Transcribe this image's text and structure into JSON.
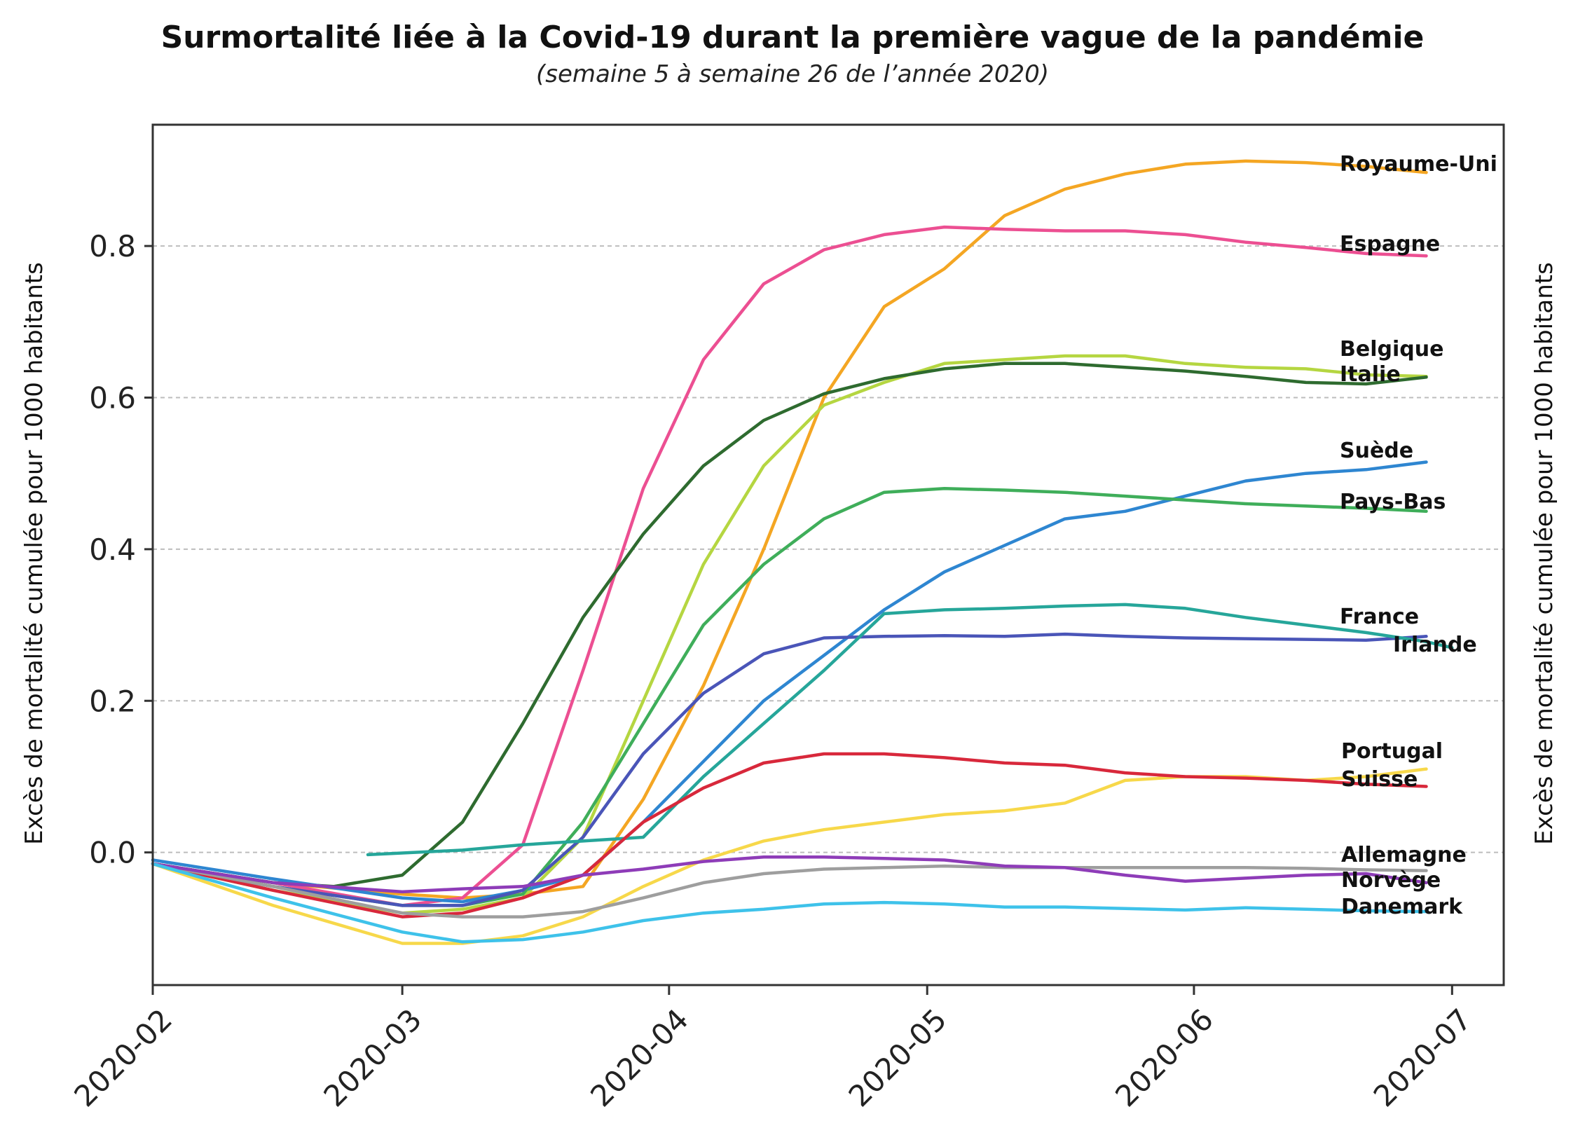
{
  "chart_data": {
    "type": "line",
    "title": "Surmortalité liée à la Covid-19 durant la première vague de la pandémie",
    "subtitle": "(semaine 5 à semaine 26 de l’année 2020)",
    "ylabel": "Excès de mortalité cumulée pour 1000 habitants",
    "ylabel_right": "Excès de mortalité cumulée pour 1000 habitants",
    "x_ticks": [
      "2020-02",
      "2020-03",
      "2020-04",
      "2020-05",
      "2020-06",
      "2020-07"
    ],
    "y_ticks": [
      "0.0",
      "0.2",
      "0.4",
      "0.6",
      "0.8"
    ],
    "ylim": [
      -0.175,
      0.96
    ],
    "xlim": [
      "2020-02-01",
      "2020-07-07"
    ],
    "grid": "horizontal dashed",
    "legend": "inline labels at right end of lines",
    "series": [
      {
        "name": "Royaume-Uni",
        "color": "#f4a623",
        "x": [
          "2020-02-01",
          "2020-02-15",
          "2020-03-01",
          "2020-03-08",
          "2020-03-15",
          "2020-03-22",
          "2020-03-29",
          "2020-04-05",
          "2020-04-12",
          "2020-04-19",
          "2020-04-26",
          "2020-05-03",
          "2020-05-10",
          "2020-05-17",
          "2020-05-24",
          "2020-05-31",
          "2020-06-07",
          "2020-06-14",
          "2020-06-21",
          "2020-06-28"
        ],
        "y": [
          -0.015,
          -0.04,
          -0.055,
          -0.06,
          -0.055,
          -0.045,
          0.07,
          0.22,
          0.4,
          0.6,
          0.72,
          0.77,
          0.84,
          0.875,
          0.895,
          0.908,
          0.912,
          0.91,
          0.905,
          0.897
        ]
      },
      {
        "name": "Espagne",
        "color": "#ec4f92",
        "x": [
          "2020-02-01",
          "2020-02-15",
          "2020-03-01",
          "2020-03-08",
          "2020-03-15",
          "2020-03-22",
          "2020-03-29",
          "2020-04-05",
          "2020-04-12",
          "2020-04-19",
          "2020-04-26",
          "2020-05-03",
          "2020-05-10",
          "2020-05-17",
          "2020-05-24",
          "2020-05-31",
          "2020-06-07",
          "2020-06-14",
          "2020-06-21",
          "2020-06-28"
        ],
        "y": [
          -0.015,
          -0.04,
          -0.07,
          -0.06,
          0.01,
          0.24,
          0.48,
          0.65,
          0.75,
          0.795,
          0.815,
          0.825,
          0.822,
          0.82,
          0.82,
          0.815,
          0.805,
          0.798,
          0.79,
          0.787
        ]
      },
      {
        "name": "Belgique",
        "color": "#b5d641",
        "x": [
          "2020-02-01",
          "2020-02-15",
          "2020-03-01",
          "2020-03-08",
          "2020-03-15",
          "2020-03-22",
          "2020-03-29",
          "2020-04-05",
          "2020-04-12",
          "2020-04-19",
          "2020-04-26",
          "2020-05-03",
          "2020-05-10",
          "2020-05-17",
          "2020-05-24",
          "2020-05-31",
          "2020-06-07",
          "2020-06-14",
          "2020-06-21",
          "2020-06-28"
        ],
        "y": [
          -0.015,
          -0.05,
          -0.08,
          -0.075,
          -0.06,
          0.02,
          0.2,
          0.38,
          0.51,
          0.59,
          0.62,
          0.645,
          0.65,
          0.655,
          0.655,
          0.645,
          0.64,
          0.638,
          0.63,
          0.628
        ]
      },
      {
        "name": "Italie",
        "color": "#2e6b2f",
        "x": [
          "2020-02-01",
          "2020-02-15",
          "2020-02-22",
          "2020-03-01",
          "2020-03-08",
          "2020-03-15",
          "2020-03-22",
          "2020-03-29",
          "2020-04-05",
          "2020-04-12",
          "2020-04-19",
          "2020-04-26",
          "2020-05-03",
          "2020-05-10",
          "2020-05-17",
          "2020-05-24",
          "2020-05-31",
          "2020-06-07",
          "2020-06-14",
          "2020-06-21",
          "2020-06-28"
        ],
        "y": [
          -0.015,
          -0.04,
          -0.045,
          -0.03,
          0.04,
          0.17,
          0.31,
          0.42,
          0.51,
          0.57,
          0.605,
          0.625,
          0.638,
          0.645,
          0.645,
          0.64,
          0.635,
          0.628,
          0.62,
          0.618,
          0.627
        ]
      },
      {
        "name": "Suède",
        "color": "#2e86d1",
        "x": [
          "2020-02-01",
          "2020-02-15",
          "2020-03-01",
          "2020-03-08",
          "2020-03-15",
          "2020-03-22",
          "2020-03-29",
          "2020-04-05",
          "2020-04-12",
          "2020-04-19",
          "2020-04-26",
          "2020-05-03",
          "2020-05-10",
          "2020-05-17",
          "2020-05-24",
          "2020-05-31",
          "2020-06-07",
          "2020-06-14",
          "2020-06-21",
          "2020-06-28"
        ],
        "y": [
          -0.01,
          -0.035,
          -0.06,
          -0.065,
          -0.05,
          -0.03,
          0.04,
          0.12,
          0.2,
          0.26,
          0.32,
          0.37,
          0.405,
          0.44,
          0.45,
          0.47,
          0.49,
          0.5,
          0.505,
          0.515
        ]
      },
      {
        "name": "Pays-Bas",
        "color": "#3fae5a",
        "x": [
          "2020-02-01",
          "2020-02-15",
          "2020-03-01",
          "2020-03-08",
          "2020-03-15",
          "2020-03-22",
          "2020-03-29",
          "2020-04-05",
          "2020-04-12",
          "2020-04-19",
          "2020-04-26",
          "2020-05-03",
          "2020-05-10",
          "2020-05-17",
          "2020-05-24",
          "2020-05-31",
          "2020-06-07",
          "2020-06-14",
          "2020-06-21",
          "2020-06-28"
        ],
        "y": [
          -0.015,
          -0.045,
          -0.07,
          -0.07,
          -0.055,
          0.04,
          0.17,
          0.3,
          0.38,
          0.44,
          0.475,
          0.48,
          0.478,
          0.475,
          0.47,
          0.465,
          0.46,
          0.457,
          0.454,
          0.45
        ]
      },
      {
        "name": "France",
        "color": "#4a55b8",
        "x": [
          "2020-02-01",
          "2020-02-15",
          "2020-03-01",
          "2020-03-08",
          "2020-03-15",
          "2020-03-22",
          "2020-03-29",
          "2020-04-05",
          "2020-04-12",
          "2020-04-19",
          "2020-04-26",
          "2020-05-03",
          "2020-05-10",
          "2020-05-17",
          "2020-05-24",
          "2020-05-31",
          "2020-06-07",
          "2020-06-14",
          "2020-06-21",
          "2020-06-28"
        ],
        "y": [
          -0.015,
          -0.045,
          -0.07,
          -0.07,
          -0.05,
          0.02,
          0.13,
          0.21,
          0.262,
          0.283,
          0.285,
          0.286,
          0.285,
          0.288,
          0.285,
          0.283,
          0.282,
          0.281,
          0.28,
          0.285
        ]
      },
      {
        "name": "Irlande",
        "color": "#26a69a",
        "x": [
          "2020-02-26",
          "2020-03-08",
          "2020-03-15",
          "2020-03-22",
          "2020-03-29",
          "2020-04-05",
          "2020-04-12",
          "2020-04-19",
          "2020-04-26",
          "2020-05-03",
          "2020-05-10",
          "2020-05-17",
          "2020-05-24",
          "2020-05-31",
          "2020-06-07",
          "2020-06-14",
          "2020-06-21",
          "2020-06-28",
          "2020-07-01"
        ],
        "y": [
          -0.003,
          0.003,
          0.01,
          0.015,
          0.02,
          0.1,
          0.17,
          0.24,
          0.315,
          0.32,
          0.322,
          0.325,
          0.327,
          0.322,
          0.31,
          0.3,
          0.29,
          0.278,
          0.27
        ]
      },
      {
        "name": "Portugal",
        "color": "#f7d84a",
        "x": [
          "2020-02-01",
          "2020-02-15",
          "2020-03-01",
          "2020-03-08",
          "2020-03-15",
          "2020-03-22",
          "2020-03-29",
          "2020-04-05",
          "2020-04-12",
          "2020-04-19",
          "2020-04-26",
          "2020-05-03",
          "2020-05-10",
          "2020-05-17",
          "2020-05-24",
          "2020-05-31",
          "2020-06-07",
          "2020-06-14",
          "2020-06-21",
          "2020-06-28"
        ],
        "y": [
          -0.015,
          -0.07,
          -0.12,
          -0.12,
          -0.11,
          -0.085,
          -0.045,
          -0.01,
          0.015,
          0.03,
          0.04,
          0.05,
          0.055,
          0.065,
          0.095,
          0.1,
          0.1,
          0.095,
          0.1,
          0.11
        ]
      },
      {
        "name": "Suisse",
        "color": "#d8283b",
        "x": [
          "2020-02-01",
          "2020-02-15",
          "2020-03-01",
          "2020-03-08",
          "2020-03-15",
          "2020-03-22",
          "2020-03-29",
          "2020-04-05",
          "2020-04-12",
          "2020-04-19",
          "2020-04-26",
          "2020-05-03",
          "2020-05-10",
          "2020-05-17",
          "2020-05-24",
          "2020-05-31",
          "2020-06-07",
          "2020-06-14",
          "2020-06-21",
          "2020-06-28"
        ],
        "y": [
          -0.015,
          -0.05,
          -0.085,
          -0.08,
          -0.06,
          -0.03,
          0.04,
          0.085,
          0.118,
          0.13,
          0.13,
          0.125,
          0.118,
          0.115,
          0.105,
          0.1,
          0.098,
          0.095,
          0.09,
          0.087
        ]
      },
      {
        "name": "Allemagne",
        "color": "#9e9e9e",
        "x": [
          "2020-02-01",
          "2020-02-15",
          "2020-03-01",
          "2020-03-08",
          "2020-03-15",
          "2020-03-22",
          "2020-03-29",
          "2020-04-05",
          "2020-04-12",
          "2020-04-19",
          "2020-04-26",
          "2020-05-03",
          "2020-05-10",
          "2020-05-17",
          "2020-05-24",
          "2020-05-31",
          "2020-06-07",
          "2020-06-14",
          "2020-06-21",
          "2020-06-28"
        ],
        "y": [
          -0.015,
          -0.045,
          -0.08,
          -0.085,
          -0.085,
          -0.078,
          -0.06,
          -0.04,
          -0.028,
          -0.022,
          -0.02,
          -0.018,
          -0.02,
          -0.02,
          -0.02,
          -0.02,
          -0.02,
          -0.021,
          -0.023,
          -0.024
        ]
      },
      {
        "name": "Norvège",
        "color": "#8e3cb8",
        "x": [
          "2020-02-01",
          "2020-02-15",
          "2020-03-01",
          "2020-03-08",
          "2020-03-15",
          "2020-03-22",
          "2020-03-29",
          "2020-04-05",
          "2020-04-12",
          "2020-04-19",
          "2020-04-26",
          "2020-05-03",
          "2020-05-10",
          "2020-05-17",
          "2020-05-24",
          "2020-05-31",
          "2020-06-07",
          "2020-06-14",
          "2020-06-21",
          "2020-06-28"
        ],
        "y": [
          -0.015,
          -0.04,
          -0.052,
          -0.048,
          -0.045,
          -0.03,
          -0.022,
          -0.012,
          -0.006,
          -0.006,
          -0.008,
          -0.01,
          -0.018,
          -0.02,
          -0.03,
          -0.038,
          -0.034,
          -0.03,
          -0.028,
          -0.04
        ]
      },
      {
        "name": "Danemark",
        "color": "#3ec2ea",
        "x": [
          "2020-02-01",
          "2020-02-15",
          "2020-03-01",
          "2020-03-08",
          "2020-03-15",
          "2020-03-22",
          "2020-03-29",
          "2020-04-05",
          "2020-04-12",
          "2020-04-19",
          "2020-04-26",
          "2020-05-03",
          "2020-05-10",
          "2020-05-17",
          "2020-05-24",
          "2020-05-31",
          "2020-06-07",
          "2020-06-14",
          "2020-06-21",
          "2020-06-28"
        ],
        "y": [
          -0.015,
          -0.06,
          -0.105,
          -0.118,
          -0.115,
          -0.105,
          -0.09,
          -0.08,
          -0.075,
          -0.068,
          -0.066,
          -0.068,
          -0.072,
          -0.072,
          -0.074,
          -0.076,
          -0.073,
          -0.075,
          -0.077,
          -0.078
        ]
      }
    ]
  }
}
